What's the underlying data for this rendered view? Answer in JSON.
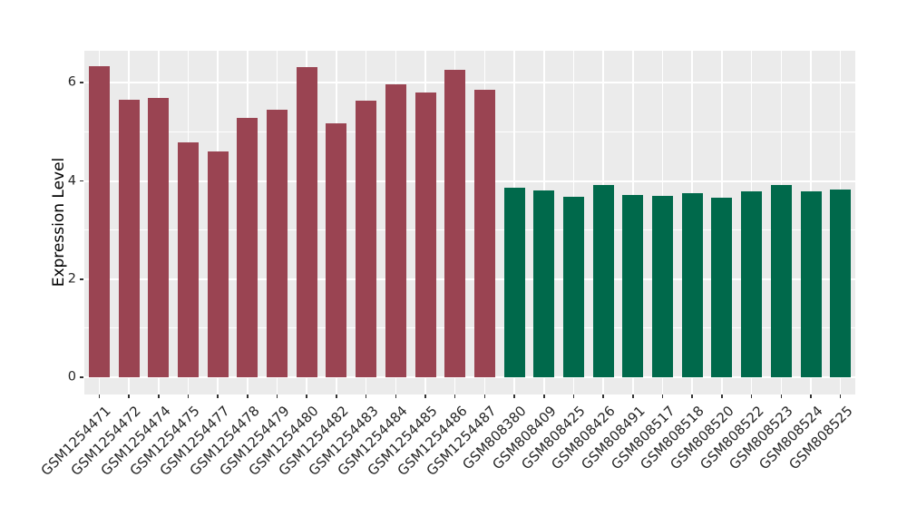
{
  "figure": {
    "background": "#FFFFFF"
  },
  "panel": {
    "background": "#EBEBEB",
    "grid_color": "#FFFFFF",
    "tick_color": "#333333",
    "tick_label_color": "#262626"
  },
  "chart_data": {
    "type": "bar",
    "title": "",
    "xlabel": "",
    "ylabel": "Expression Level",
    "ylim": [
      -0.35,
      6.65
    ],
    "yticks_major": [
      0,
      2,
      4,
      6
    ],
    "yticks_minor": [
      1,
      3,
      5
    ],
    "grid": "white major+minor horizontal lines; white vertical line at each category center",
    "legend": "none",
    "categories": [
      "GSM1254471",
      "GSM1254472",
      "GSM1254474",
      "GSM1254475",
      "GSM1254477",
      "GSM1254478",
      "GSM1254479",
      "GSM1254480",
      "GSM1254482",
      "GSM1254483",
      "GSM1254484",
      "GSM1254485",
      "GSM1254486",
      "GSM1254487",
      "GSM808380",
      "GSM808409",
      "GSM808425",
      "GSM808426",
      "GSM808491",
      "GSM808517",
      "GSM808518",
      "GSM808520",
      "GSM808522",
      "GSM808523",
      "GSM808524",
      "GSM808525"
    ],
    "values": [
      6.33,
      5.66,
      5.69,
      4.78,
      4.61,
      5.28,
      5.45,
      6.32,
      5.17,
      5.63,
      5.97,
      5.81,
      6.27,
      5.85,
      3.87,
      3.81,
      3.67,
      3.91,
      3.72,
      3.7,
      3.75,
      3.66,
      3.78,
      3.92,
      3.79,
      3.83
    ],
    "groups": [
      {
        "color": "#9A4452",
        "from": 0,
        "to": 13
      },
      {
        "color": "#00694B",
        "from": 14,
        "to": 25
      }
    ]
  }
}
